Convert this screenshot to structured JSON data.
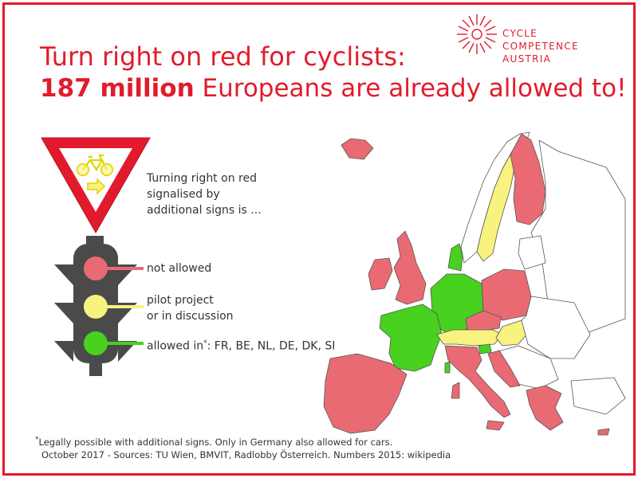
{
  "brand": {
    "line1": "CYCLE COMPETENCE",
    "line2": "AUSTRIA",
    "color": "#e21b2c",
    "icon": "sunburst-logo-icon"
  },
  "title": {
    "line1": "Turn right on red for cyclists:",
    "line2_bold": "187 million",
    "line2_rest": " Europeans are already allowed to!"
  },
  "sign": {
    "description_line1": "Turning right on red",
    "description_line2": "signalised by",
    "description_line3": "additional signs is ...",
    "icon": "yield-sign-with-bicycle-icon"
  },
  "legend": {
    "not_allowed": {
      "label": "not allowed",
      "color": "#ea6a73"
    },
    "pilot": {
      "line1": "pilot project",
      "line2": "or in discussion",
      "color": "#f8f27f"
    },
    "allowed": {
      "label": "allowed in",
      "star": "*",
      "countries": ": FR, BE, NL, DE, DK, SI",
      "color": "#48d11e"
    }
  },
  "footnote": {
    "star": "*",
    "line1": "Legally possible with additional signs. Only in Germany also allowed for cars.",
    "line2": "October 2017 - Sources: TU Wien, BMVIT, Radlobby Österreich. Numbers 2015: wikipedia"
  },
  "map": {
    "icon": "europe-map-icon",
    "colors": {
      "not_allowed": "#ea6a73",
      "pilot": "#f8f27f",
      "allowed": "#48d11e",
      "other": "#ffffff",
      "border": "#555555"
    }
  }
}
